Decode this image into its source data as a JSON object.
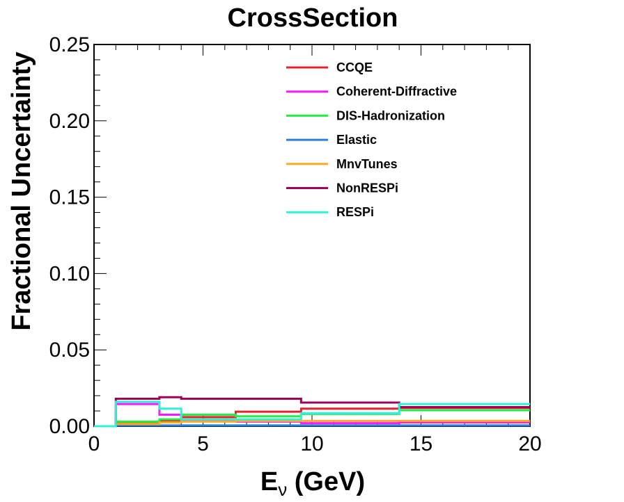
{
  "chart_data": {
    "type": "line",
    "title": "CrossSection",
    "xlabel_main": "E",
    "xlabel_sub": "ν",
    "xlabel_unit": " (GeV)",
    "ylabel": "Fractional Uncertainty",
    "xlim": [
      0,
      20
    ],
    "ylim": [
      0,
      0.25
    ],
    "xticks": [
      "0",
      "5",
      "10",
      "15",
      "20"
    ],
    "yticks": [
      "0.00",
      "0.05",
      "0.10",
      "0.15",
      "0.20",
      "0.25"
    ],
    "bin_edges": [
      0,
      1,
      3,
      4,
      6.5,
      9.5,
      14,
      20
    ],
    "legend_position": "top-right",
    "grid": false,
    "series": [
      {
        "name": "CCQE",
        "color": "#e8202e",
        "values": [
          0,
          0.0025,
          0.0035,
          0.006,
          0.0095,
          0.0115,
          0.012
        ]
      },
      {
        "name": "Coherent-Diffractive",
        "color": "#ff18ff",
        "values": [
          0,
          0.0145,
          0.0075,
          0.004,
          0.003,
          0.002,
          0.0025
        ]
      },
      {
        "name": "DIS-Hadronization",
        "color": "#22ee44",
        "values": [
          0,
          0.003,
          0.0045,
          0.0075,
          0.0065,
          0.008,
          0.0105
        ]
      },
      {
        "name": "Elastic",
        "color": "#2a7de1",
        "values": [
          0,
          0.0005,
          0.0005,
          0.0005,
          0.0005,
          0.0005,
          0.0005
        ]
      },
      {
        "name": "MnvTunes",
        "color": "#ffaa22",
        "values": [
          0,
          0.0015,
          0.0025,
          0.003,
          0.0035,
          0.0035,
          0.0035
        ]
      },
      {
        "name": "NonRESPi",
        "color": "#a0005a",
        "values": [
          0,
          0.018,
          0.019,
          0.018,
          0.018,
          0.0155,
          0.0125
        ]
      },
      {
        "name": "RESPi",
        "color": "#2cf2d8",
        "values": [
          0,
          0.016,
          0.0115,
          0.0045,
          0.0045,
          0.0085,
          0.0145
        ]
      }
    ]
  }
}
